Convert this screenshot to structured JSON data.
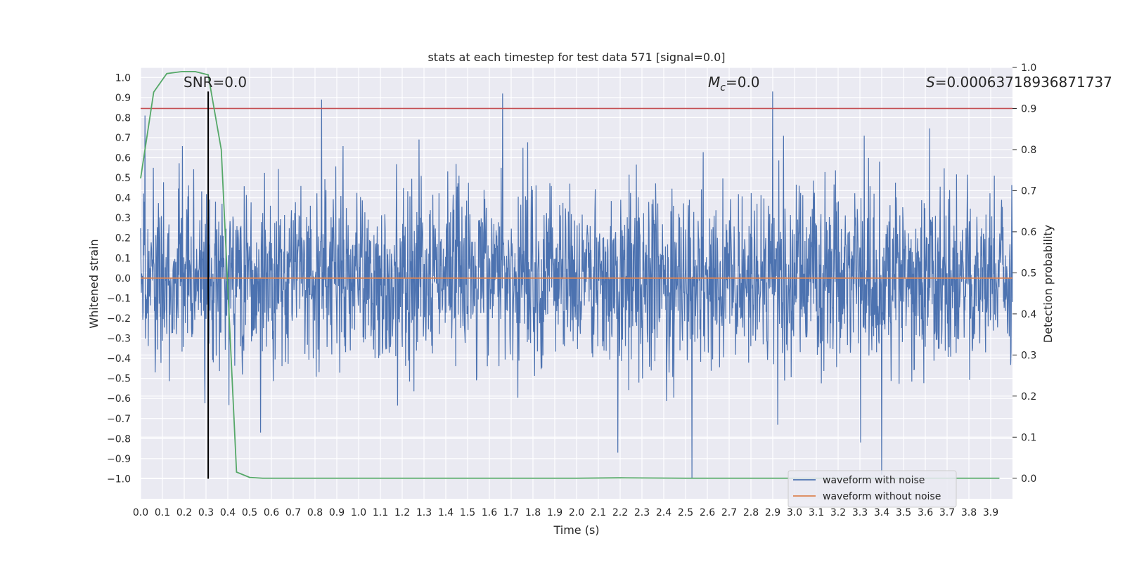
{
  "chart_data": {
    "type": "line",
    "title": "stats at each timestep for test data 571 [signal=0.0]",
    "xlabel": "Time (s)",
    "ylabel": "Whitened strain",
    "y2label": "Detection probability",
    "xlim": [
      0.0,
      4.0
    ],
    "ylim": [
      -1.1,
      1.05
    ],
    "y2lim": [
      -0.05,
      1.0
    ],
    "grid": true,
    "legend_position": "bottom-right",
    "x_ticks": [
      "0.0",
      "0.1",
      "0.2",
      "0.3",
      "0.4",
      "0.5",
      "0.6",
      "0.7",
      "0.8",
      "0.9",
      "1.0",
      "1.1",
      "1.2",
      "1.3",
      "1.4",
      "1.5",
      "1.6",
      "1.7",
      "1.8",
      "1.9",
      "2.0",
      "2.1",
      "2.2",
      "2.3",
      "2.4",
      "2.5",
      "2.6",
      "2.7",
      "2.8",
      "2.9",
      "3.0",
      "3.1",
      "3.2",
      "3.3",
      "3.4",
      "3.5",
      "3.6",
      "3.7",
      "3.8",
      "3.9"
    ],
    "y_ticks": [
      "1.0",
      "0.9",
      "0.8",
      "0.7",
      "0.6",
      "0.5",
      "0.4",
      "0.3",
      "0.2",
      "0.1",
      "0.0",
      "−0.1",
      "−0.2",
      "−0.3",
      "−0.4",
      "−0.5",
      "−0.6",
      "−0.7",
      "−0.8",
      "−0.9",
      "−1.0"
    ],
    "y2_ticks": [
      "1.0",
      "0.9",
      "0.8",
      "0.7",
      "0.6",
      "0.5",
      "0.4",
      "0.3",
      "0.2",
      "0.1",
      "0.0"
    ],
    "annotations": {
      "snr": "SNR=0.0",
      "mc_prefix": "M",
      "mc_sub": "c",
      "mc_value": "=0.0",
      "s_prefix": "S",
      "s_value": "=0.00063718936871737"
    },
    "series": [
      {
        "name": "waveform with noise",
        "color": "#4c72b0",
        "axis": "left",
        "style": "dense noise, approx. gaussian, std ~0.2, extremes in [-1.0, 0.93]",
        "peaks": [
          {
            "x": 0.02,
            "y": 0.81
          },
          {
            "x": 0.83,
            "y": 0.89
          },
          {
            "x": 1.66,
            "y": 0.92
          },
          {
            "x": 2.9,
            "y": 0.93
          },
          {
            "x": 2.53,
            "y": -1.0
          },
          {
            "x": 3.4,
            "y": -0.98
          },
          {
            "x": 0.55,
            "y": -0.77
          },
          {
            "x": 2.19,
            "y": -0.87
          }
        ]
      },
      {
        "name": "waveform without noise",
        "color": "#dd8452",
        "axis": "left",
        "x": [
          0.0,
          4.0
        ],
        "y": [
          0.0,
          0.0
        ]
      },
      {
        "color": "#55a868",
        "axis": "right",
        "x": [
          0.0,
          0.06,
          0.12,
          0.19,
          0.25,
          0.31,
          0.37,
          0.44,
          0.5,
          0.56,
          1.0,
          1.5,
          2.0,
          2.2,
          2.5,
          3.0,
          3.5,
          3.94
        ],
        "y": [
          0.73,
          0.94,
          0.985,
          0.99,
          0.99,
          0.982,
          0.8,
          0.015,
          0.002,
          0.0,
          0.0,
          0.0,
          0.0,
          0.001,
          0.0,
          0.0,
          0.0,
          0.0
        ]
      }
    ],
    "threshold": {
      "axis": "right",
      "value": 0.9,
      "color": "#c44e52"
    },
    "marker": {
      "x": 0.31,
      "y_from": -1.0,
      "y_to": 0.93,
      "color": "#000000"
    }
  }
}
